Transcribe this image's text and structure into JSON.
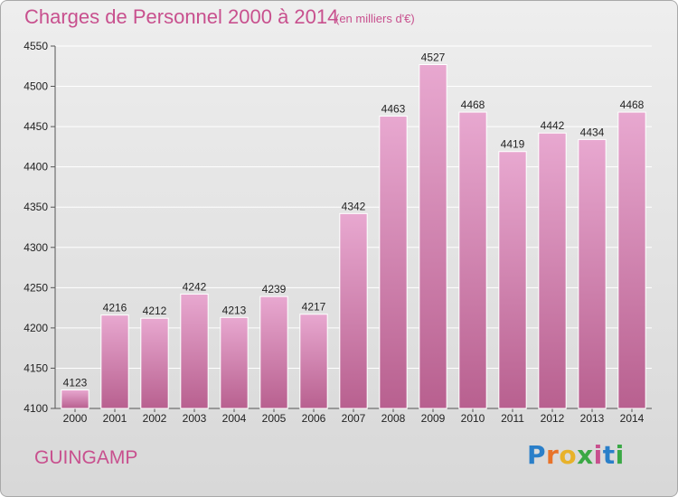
{
  "header": {
    "title": "Charges de Personnel 2000 à 2014",
    "unit": "(en milliers d'€)"
  },
  "footer": {
    "city": "GUINGAMP",
    "logo_text": "Proxiti",
    "logo_colors": [
      "#2a7fc9",
      "#e8732a",
      "#e8b22a",
      "#3aa845",
      "#c8508e",
      "#2a7fc9",
      "#3aa845"
    ]
  },
  "colors": {
    "bar_light": "#e8a8d0",
    "bar_dark": "#b8608f",
    "accent": "#c8508e"
  },
  "chart_data": {
    "type": "bar",
    "title": "Charges de Personnel 2000 à 2014",
    "subtitle": "(en milliers d'€)",
    "categories": [
      "2000",
      "2001",
      "2002",
      "2003",
      "2004",
      "2005",
      "2006",
      "2007",
      "2008",
      "2009",
      "2010",
      "2011",
      "2012",
      "2013",
      "2014"
    ],
    "values": [
      4123,
      4216,
      4212,
      4242,
      4213,
      4239,
      4217,
      4342,
      4463,
      4527,
      4468,
      4419,
      4442,
      4434,
      4468
    ],
    "ylim": [
      4100,
      4550
    ],
    "yticks": [
      4100,
      4150,
      4200,
      4250,
      4300,
      4350,
      4400,
      4450,
      4500,
      4550
    ],
    "grid": true,
    "legend": "none"
  }
}
